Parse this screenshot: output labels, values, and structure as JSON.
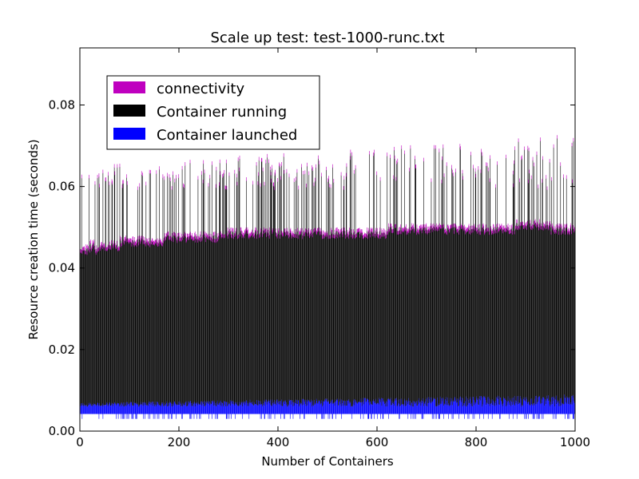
{
  "chart_data": {
    "type": "bar",
    "title": "Scale up test: test-1000-runc.txt",
    "xlabel": "Number of Containers",
    "ylabel": "Resource creation time (seconds)",
    "xlim": [
      0,
      1000
    ],
    "ylim": [
      0,
      0.094
    ],
    "xticks": [
      0,
      200,
      400,
      600,
      800,
      1000
    ],
    "xtick_labels": [
      "0",
      "200",
      "400",
      "600",
      "800",
      "1000"
    ],
    "yticks": [
      0.0,
      0.02,
      0.04,
      0.06,
      0.08
    ],
    "ytick_labels": [
      "0.00",
      "0.02",
      "0.04",
      "0.06",
      "0.08"
    ],
    "grid": false,
    "legend_position": "top-left",
    "stacked": true,
    "series": [
      {
        "name": "connectivity",
        "color": "#bf00bf",
        "typical_range": [
          0.046,
          0.052
        ],
        "spike_range": [
          0.06,
          0.073
        ],
        "values_sampled_every_10": [
          0.046,
          0.046,
          0.047,
          0.046,
          0.047,
          0.047,
          0.047,
          0.047,
          0.048,
          0.048,
          0.048,
          0.048,
          0.048,
          0.048,
          0.048,
          0.048,
          0.048,
          0.049,
          0.049,
          0.049,
          0.049,
          0.049,
          0.049,
          0.049,
          0.049,
          0.049,
          0.049,
          0.049,
          0.049,
          0.05,
          0.05,
          0.05,
          0.05,
          0.05,
          0.05,
          0.05,
          0.05,
          0.05,
          0.05,
          0.05,
          0.05,
          0.05,
          0.05,
          0.05,
          0.05,
          0.05,
          0.05,
          0.05,
          0.05,
          0.05,
          0.05,
          0.05,
          0.05,
          0.05,
          0.05,
          0.05,
          0.05,
          0.05,
          0.05,
          0.05,
          0.05,
          0.05,
          0.051,
          0.051,
          0.051,
          0.051,
          0.051,
          0.051,
          0.051,
          0.051,
          0.051,
          0.051,
          0.051,
          0.051,
          0.051,
          0.051,
          0.051,
          0.051,
          0.051,
          0.051,
          0.051,
          0.051,
          0.051,
          0.051,
          0.051,
          0.051,
          0.051,
          0.051,
          0.052,
          0.052,
          0.052,
          0.052,
          0.052,
          0.052,
          0.052,
          0.051,
          0.051,
          0.051,
          0.051,
          0.051
        ]
      },
      {
        "name": "Container running",
        "color": "#000000",
        "typical_range": [
          0.045,
          0.051
        ],
        "spike_range": [
          0.06,
          0.073
        ]
      },
      {
        "name": "Container launched",
        "color": "#0000ff",
        "typical_range": [
          0.006,
          0.008
        ],
        "baseline": 0.003
      }
    ]
  }
}
